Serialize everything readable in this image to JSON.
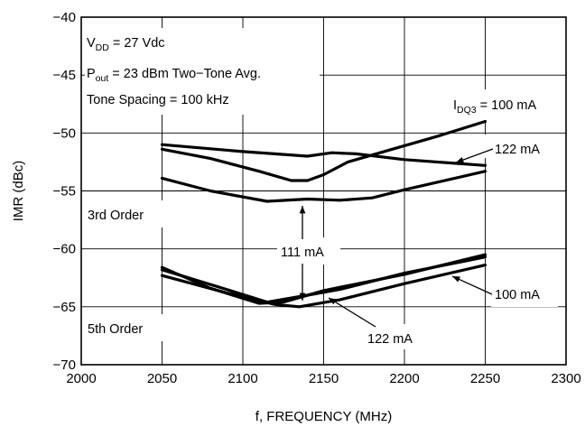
{
  "chart_data": {
    "type": "line",
    "xlabel": "f, FREQUENCY (MHz)",
    "ylabel": "IMR (dBc)",
    "xlim": [
      2000,
      2300
    ],
    "ylim": [
      -70,
      -40
    ],
    "xticks": [
      2000,
      2050,
      2100,
      2150,
      2200,
      2250,
      2300
    ],
    "yticks": [
      -40,
      -45,
      -50,
      -55,
      -60,
      -65,
      -70
    ],
    "grid": true,
    "conditions": {
      "vdd": {
        "main": "V",
        "sub": "DD",
        "rest": " = 27 Vdc"
      },
      "pout": {
        "main": "P",
        "sub": "out",
        "rest": " = 23 dBm Two−Tone Avg."
      },
      "spacing": "Tone Spacing = 100 kHz"
    },
    "group_labels": {
      "third": "3rd Order",
      "fifth": "5th Order"
    },
    "series_labels": {
      "idq_main": "I",
      "idq_sub": "DQ3",
      "idq_rest": " = 100 mA",
      "l122_top": "122 mA",
      "l111": "111 mA",
      "l100_bottom": "100 mA",
      "l122_bottom": "122 mA"
    },
    "series": [
      {
        "order": "3rd",
        "current": "100 mA",
        "x": [
          2050,
          2080,
          2110,
          2130,
          2140,
          2150,
          2165,
          2190,
          2220,
          2250
        ],
        "y": [
          -51.4,
          -52.2,
          -53.3,
          -54.1,
          -54.1,
          -53.6,
          -52.5,
          -51.5,
          -50.3,
          -49.0
        ]
      },
      {
        "order": "3rd",
        "current": "122 mA",
        "x": [
          2050,
          2100,
          2140,
          2155,
          2170,
          2200,
          2250
        ],
        "y": [
          -51.0,
          -51.6,
          -52.0,
          -51.7,
          -51.8,
          -52.3,
          -52.8
        ]
      },
      {
        "order": "3rd",
        "current": "111 mA",
        "x": [
          2050,
          2080,
          2115,
          2140,
          2160,
          2180,
          2200,
          2250
        ],
        "y": [
          -53.9,
          -55.0,
          -55.9,
          -55.7,
          -55.8,
          -55.6,
          -54.9,
          -53.3
        ]
      },
      {
        "order": "5th",
        "current": "111 mA",
        "x": [
          2050,
          2080,
          2110,
          2125,
          2150,
          2200,
          2250
        ],
        "y": [
          -61.6,
          -63.4,
          -64.7,
          -64.6,
          -63.6,
          -62.2,
          -60.5
        ]
      },
      {
        "order": "5th",
        "current": "100 mA",
        "x": [
          2050,
          2090,
          2120,
          2135,
          2160,
          2200,
          2250
        ],
        "y": [
          -62.3,
          -63.8,
          -64.8,
          -65.0,
          -64.4,
          -63.0,
          -61.4
        ]
      },
      {
        "order": "5th",
        "current": "122 mA",
        "x": [
          2050,
          2090,
          2115,
          2140,
          2160,
          2200,
          2250
        ],
        "y": [
          -61.8,
          -63.5,
          -64.6,
          -64.0,
          -63.5,
          -62.1,
          -60.7
        ]
      }
    ]
  }
}
